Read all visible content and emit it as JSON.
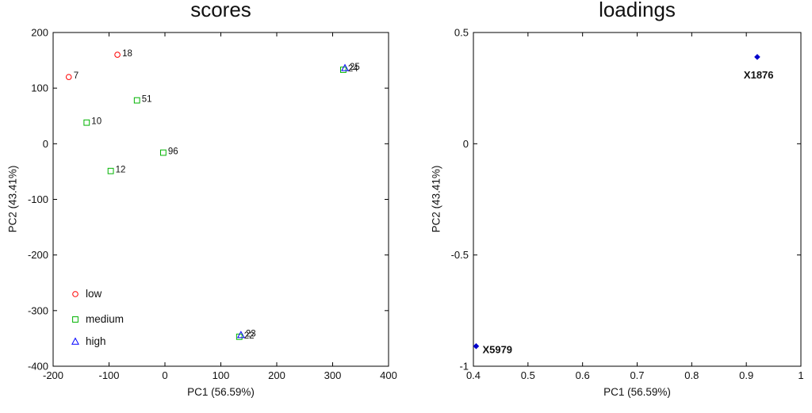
{
  "chart_data": [
    {
      "type": "scatter",
      "title": "scores",
      "xlabel": "PC1 (56.59%)",
      "ylabel": "PC2 (43.41%)",
      "xlim": [
        -200,
        400
      ],
      "ylim": [
        -400,
        200
      ],
      "xticks": [
        -200,
        -100,
        0,
        100,
        200,
        300,
        400
      ],
      "yticks": [
        -400,
        -300,
        -200,
        -100,
        0,
        100,
        200
      ],
      "grid": false,
      "legend_position": "bottom-left-inside",
      "groups": [
        {
          "name": "low",
          "marker": "circle",
          "color": "#ff0000"
        },
        {
          "name": "medium",
          "marker": "square",
          "color": "#00b300"
        },
        {
          "name": "high",
          "marker": "triangle",
          "color": "#0000ff"
        }
      ],
      "points": [
        {
          "x": -172,
          "y": 120,
          "group": "low",
          "label": "7"
        },
        {
          "x": -85,
          "y": 160,
          "group": "low",
          "label": "18"
        },
        {
          "x": -140,
          "y": 38,
          "group": "medium",
          "label": "10"
        },
        {
          "x": -50,
          "y": 78,
          "group": "medium",
          "label": "51"
        },
        {
          "x": -97,
          "y": -49,
          "group": "medium",
          "label": "12"
        },
        {
          "x": -3,
          "y": -16,
          "group": "medium",
          "label": "96"
        },
        {
          "x": 319,
          "y": 133,
          "group": "medium",
          "label": "24"
        },
        {
          "x": 322,
          "y": 136,
          "group": "high",
          "label": "25"
        },
        {
          "x": 133,
          "y": -347,
          "group": "medium",
          "label": "22"
        },
        {
          "x": 136,
          "y": -344,
          "group": "high",
          "label": "23"
        }
      ]
    },
    {
      "type": "scatter",
      "title": "loadings",
      "xlabel": "PC1 (56.59%)",
      "ylabel": "PC2 (43.41%)",
      "xlim": [
        0.4,
        1
      ],
      "ylim": [
        -1,
        0.5
      ],
      "xticks": [
        0.4,
        0.5,
        0.6,
        0.7,
        0.8,
        0.9,
        1
      ],
      "yticks": [
        -1,
        -0.5,
        0,
        0.5
      ],
      "grid": false,
      "marker": "diamond",
      "color": "#0000cc",
      "points": [
        {
          "x": 0.405,
          "y": -0.91,
          "label": "X5979",
          "label_anchor": "right"
        },
        {
          "x": 0.92,
          "y": 0.39,
          "label": "X1876",
          "label_anchor": "below"
        }
      ]
    }
  ]
}
